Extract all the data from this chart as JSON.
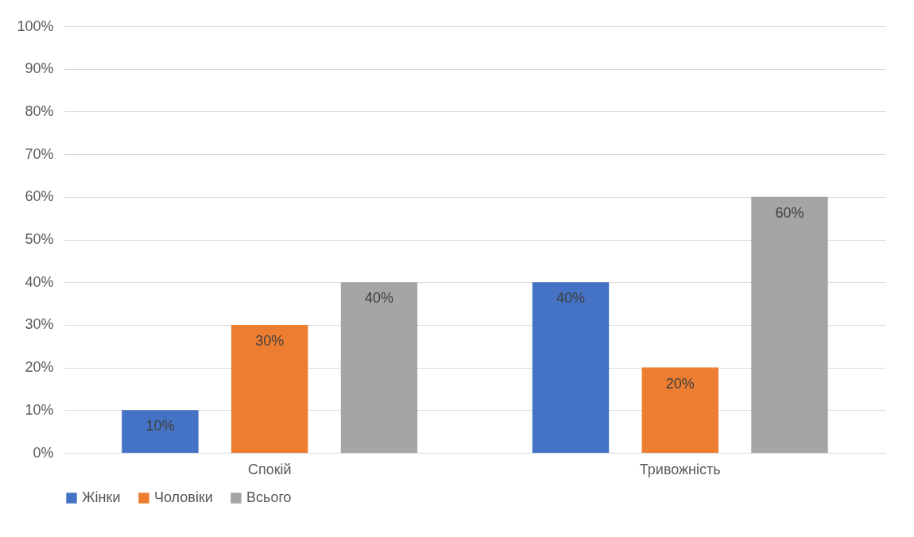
{
  "chart_data": {
    "type": "bar",
    "categories": [
      "Спокій",
      "Тривожність"
    ],
    "series": [
      {
        "name": "Жінки",
        "color": "#4472c4",
        "values": [
          10,
          40
        ],
        "value_labels": [
          "10%",
          "40%"
        ]
      },
      {
        "name": "Чоловіки",
        "color": "#ed7d31",
        "values": [
          30,
          20
        ],
        "value_labels": [
          "30%",
          "20%"
        ]
      },
      {
        "name": "Всього",
        "color": "#a5a5a5",
        "values": [
          40,
          60
        ],
        "value_labels": [
          "40%",
          "60%"
        ]
      }
    ],
    "ylim": [
      0,
      100
    ],
    "yticks": [
      {
        "value": 0,
        "label": "0%"
      },
      {
        "value": 10,
        "label": "10%"
      },
      {
        "value": 20,
        "label": "20%"
      },
      {
        "value": 30,
        "label": "30%"
      },
      {
        "value": 40,
        "label": "40%"
      },
      {
        "value": 50,
        "label": "50%"
      },
      {
        "value": 60,
        "label": "60%"
      },
      {
        "value": 70,
        "label": "70%"
      },
      {
        "value": 80,
        "label": "80%"
      },
      {
        "value": 90,
        "label": "90%"
      },
      {
        "value": 100,
        "label": "100%"
      }
    ],
    "grid": "y",
    "legend": "bottom"
  }
}
